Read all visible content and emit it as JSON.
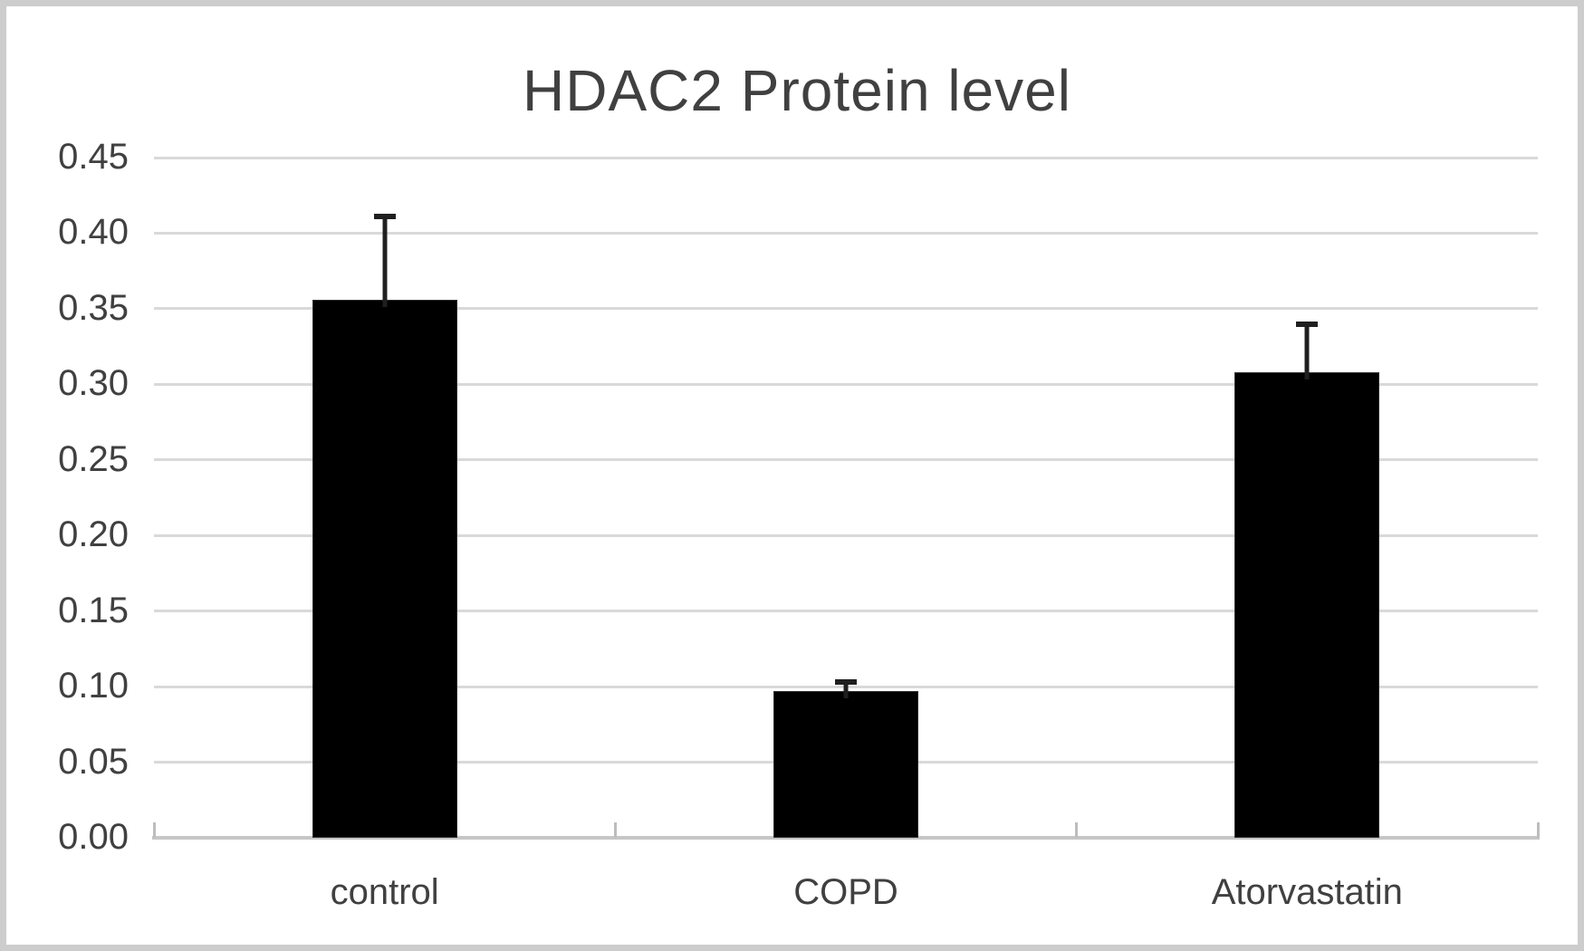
{
  "chart_data": {
    "type": "bar",
    "title": "HDAC2 Protein level",
    "categories": [
      "control",
      "COPD",
      "Atorvastatin"
    ],
    "values": [
      0.356,
      0.097,
      0.308
    ],
    "errors": [
      0.055,
      0.006,
      0.032
    ],
    "error_direction": "plus-only",
    "xlabel": "",
    "ylabel": "",
    "ylim": [
      0,
      0.45
    ],
    "ytick_step": 0.05,
    "ytick_labels": [
      "0.00",
      "0.05",
      "0.10",
      "0.15",
      "0.20",
      "0.25",
      "0.30",
      "0.35",
      "0.40",
      "0.45"
    ],
    "grid": "horizontal",
    "legend": "none",
    "colors": {
      "bar": "#000000",
      "error_bar": "#1f1f1f",
      "gridline": "#d9d9d9",
      "axis_line": "#c6c6c6",
      "tick_mark": "#bdbdbd",
      "text": "#404040",
      "background": "#ffffff",
      "frame_border": "#cdcdcd"
    }
  }
}
